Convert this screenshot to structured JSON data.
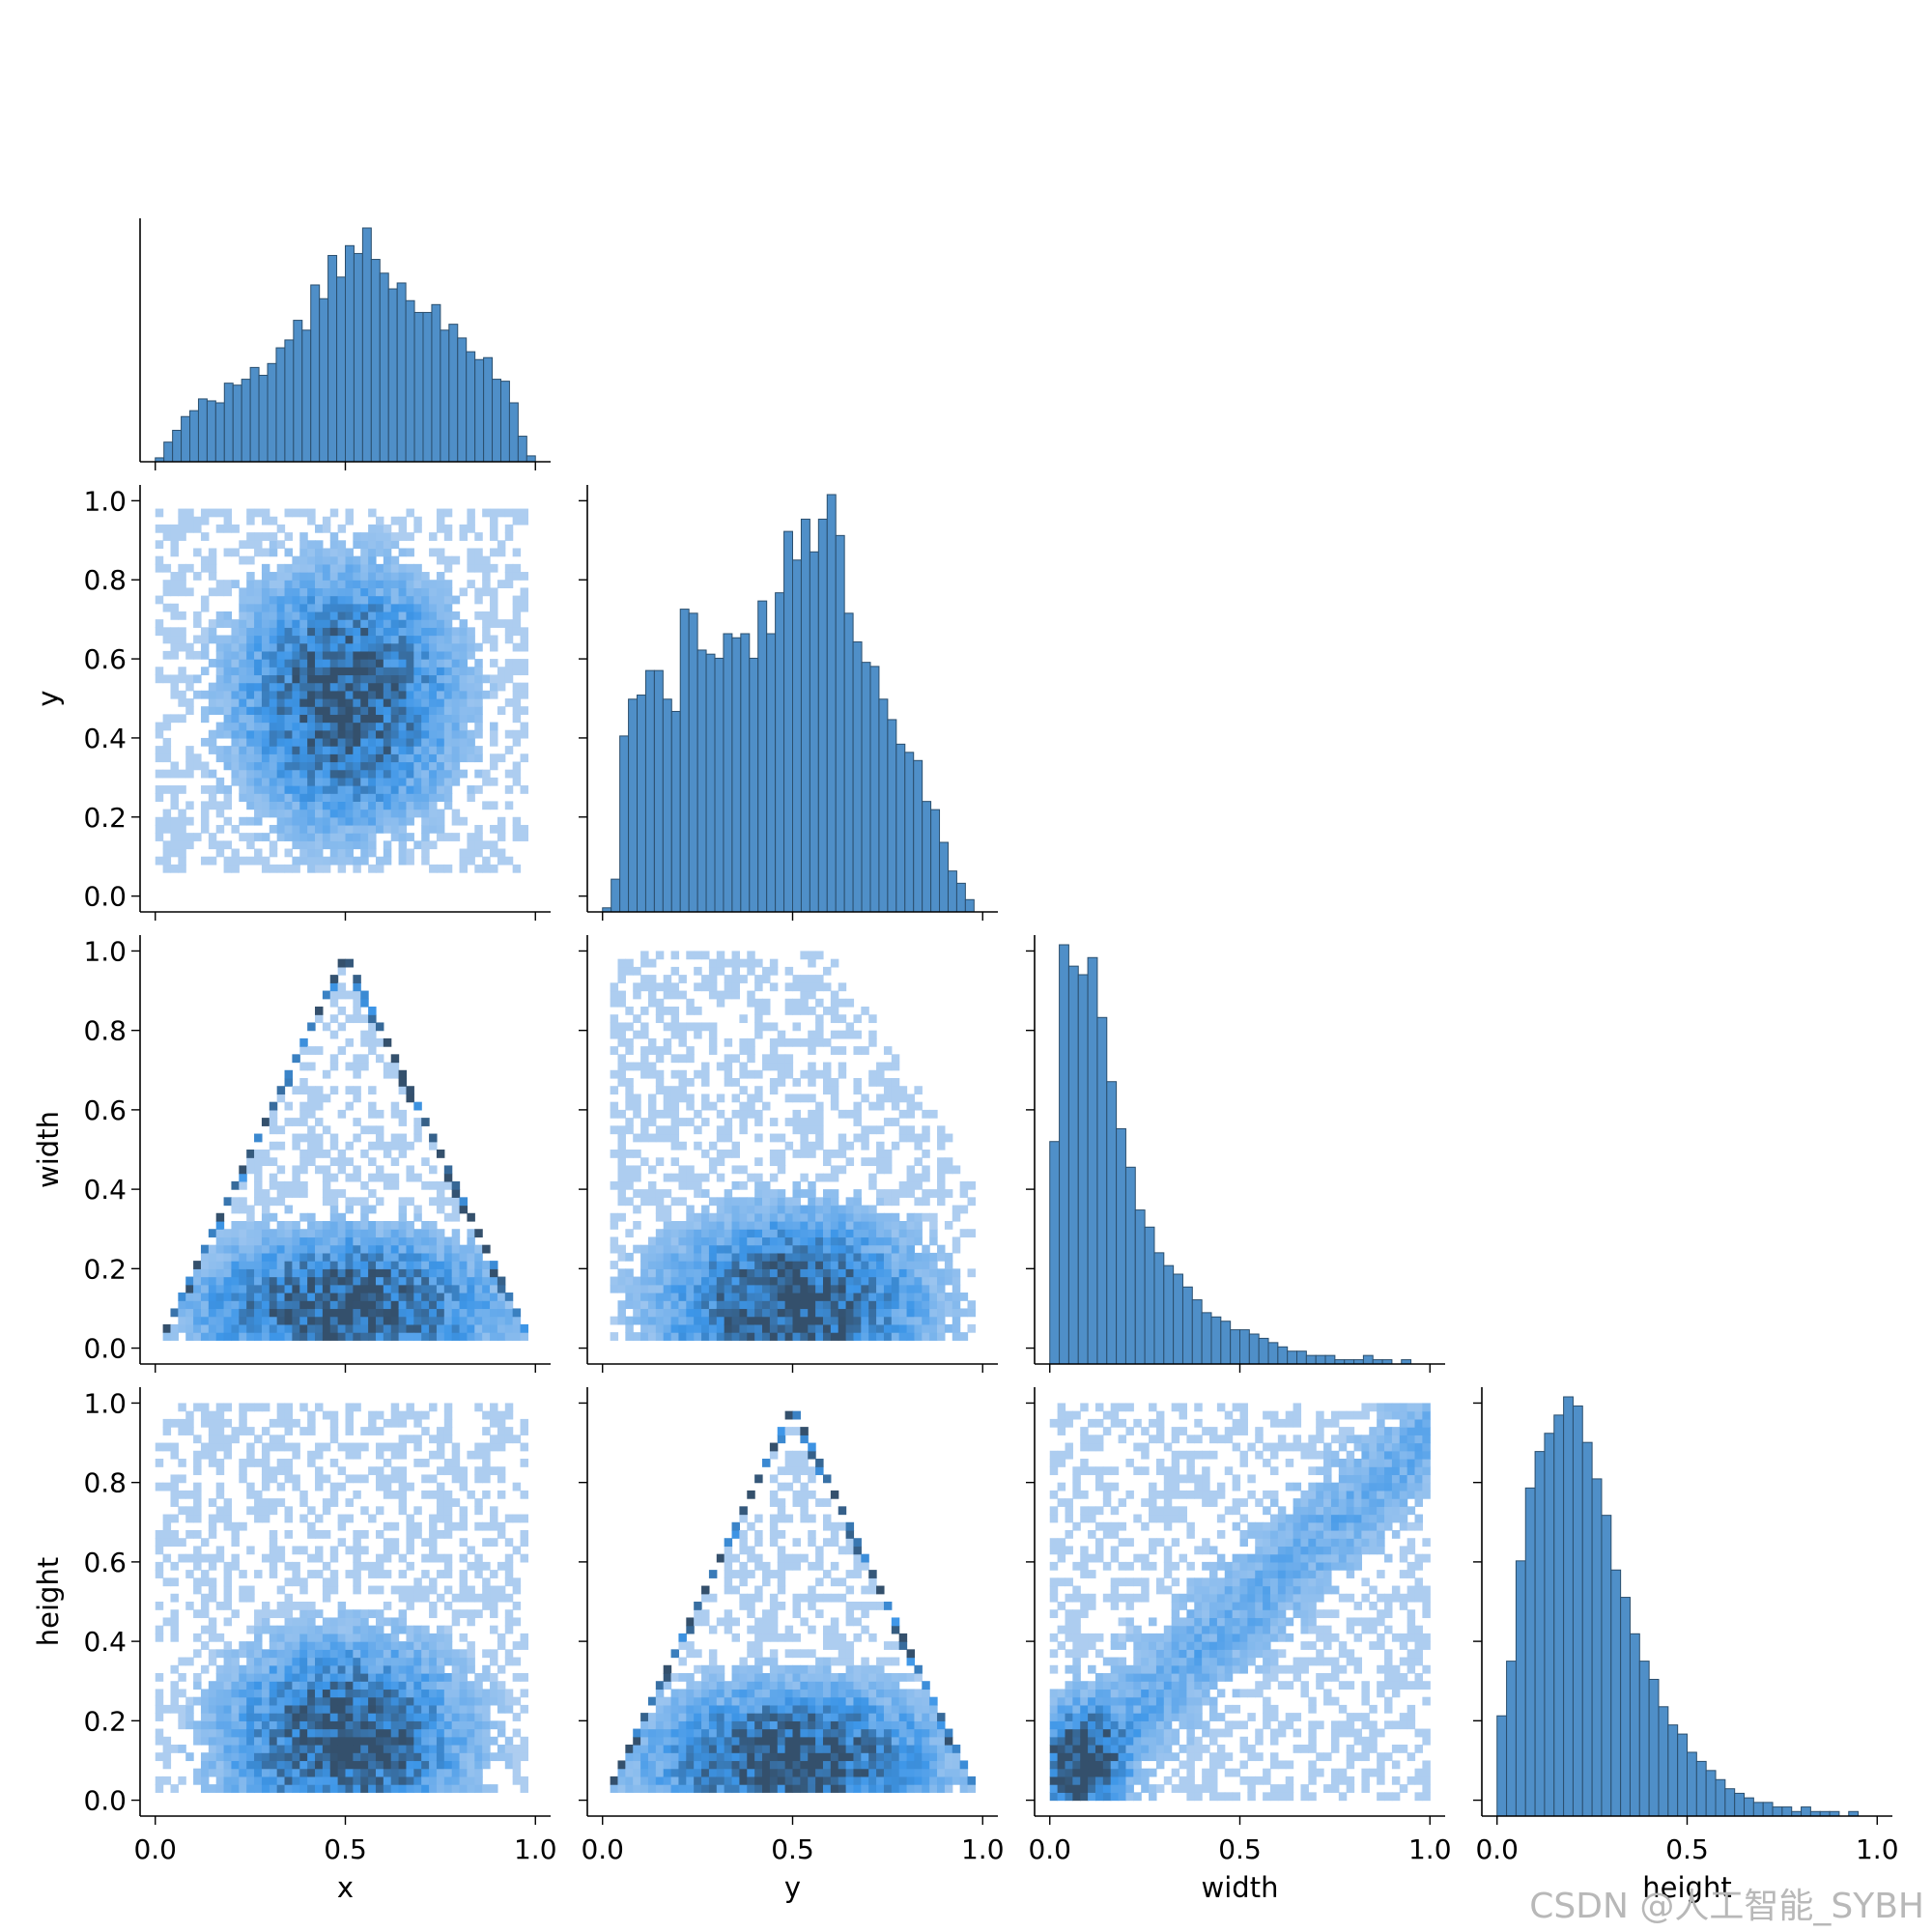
{
  "watermark": "CSDN @人工智能_SYBH",
  "chart_data": {
    "type": "pairplot",
    "variables": [
      "x",
      "y",
      "width",
      "height"
    ],
    "diagonal": "histogram",
    "off_diagonal": "2d-histogram",
    "corner": true,
    "grid": false,
    "colors": {
      "hist_fill": "#4f8fc8",
      "hist_edge": "#2b4f6e",
      "heat_light": "#b9d3f1",
      "heat_mid": "#3d96e8",
      "heat_dark": "#34506c"
    },
    "axis_ranges": {
      "x": [
        0.0,
        1.0
      ],
      "y": [
        0.0,
        1.0
      ],
      "width": [
        0.0,
        1.0
      ],
      "height": [
        0.0,
        1.0
      ]
    },
    "x_ticks": [
      0.0,
      0.5,
      1.0
    ],
    "x_tick_labels": [
      "0.0",
      "0.5",
      "1.0"
    ],
    "y_ticks": [
      0.0,
      0.2,
      0.4,
      0.6,
      0.8,
      1.0
    ],
    "y_tick_labels": [
      "0.0",
      "0.2",
      "0.4",
      "0.6",
      "0.8",
      "1.0"
    ],
    "histograms": {
      "x": {
        "bin_range": [
          0.0,
          1.0
        ],
        "counts": [
          2,
          10,
          16,
          23,
          26,
          32,
          31,
          30,
          40,
          39,
          42,
          48,
          44,
          50,
          58,
          62,
          72,
          67,
          90,
          83,
          105,
          94,
          110,
          106,
          119,
          103,
          96,
          88,
          91,
          82,
          76,
          76,
          80,
          67,
          70,
          63,
          56,
          52,
          53,
          42,
          41,
          30,
          13,
          3
        ]
      },
      "y": {
        "bin_range": [
          0.0,
          1.0
        ],
        "counts": [
          1,
          8,
          43,
          52,
          53,
          59,
          59,
          52,
          49,
          74,
          73,
          64,
          63,
          62,
          68,
          67,
          68,
          62,
          76,
          68,
          78,
          93,
          86,
          96,
          88,
          96,
          102,
          92,
          73,
          66,
          61,
          60,
          52,
          47,
          41,
          39,
          37,
          27,
          25,
          17,
          10,
          7,
          3,
          0
        ]
      },
      "width": {
        "bin_range": [
          0.0,
          1.0
        ],
        "counts": [
          52,
          98,
          93,
          91,
          95,
          81,
          66,
          55,
          46,
          36,
          32,
          26,
          23,
          21,
          18,
          15,
          12,
          11,
          10,
          8,
          8,
          7,
          6,
          5,
          4,
          3,
          3,
          2,
          2,
          2,
          1,
          1,
          1,
          2,
          1,
          1,
          0,
          1,
          0,
          0
        ]
      },
      "height": {
        "bin_range": [
          0.0,
          1.0
        ],
        "counts": [
          22,
          34,
          56,
          72,
          80,
          84,
          88,
          92,
          90,
          82,
          74,
          66,
          54,
          48,
          40,
          34,
          30,
          24,
          20,
          18,
          14,
          12,
          10,
          8,
          6,
          5,
          4,
          3,
          3,
          2,
          2,
          1,
          2,
          1,
          1,
          1,
          0,
          1,
          0,
          0
        ]
      }
    },
    "pairs": [
      {
        "x": "x",
        "y": "y",
        "pattern": "central blob",
        "center": [
          0.5,
          0.5
        ],
        "spread": [
          0.18,
          0.2
        ]
      },
      {
        "x": "x",
        "y": "width",
        "pattern": "triangle",
        "bound": "width <= 2*min(x, 1-x)"
      },
      {
        "x": "y",
        "y": "width",
        "pattern": "low band",
        "center": [
          0.5,
          0.1
        ]
      },
      {
        "x": "x",
        "y": "height",
        "pattern": "low band",
        "center": [
          0.5,
          0.15
        ]
      },
      {
        "x": "y",
        "y": "height",
        "pattern": "triangle",
        "bound": "height <= 2*min(y, 1-y)"
      },
      {
        "x": "width",
        "y": "height",
        "pattern": "positive correlation",
        "center": [
          0.1,
          0.1
        ]
      }
    ]
  }
}
